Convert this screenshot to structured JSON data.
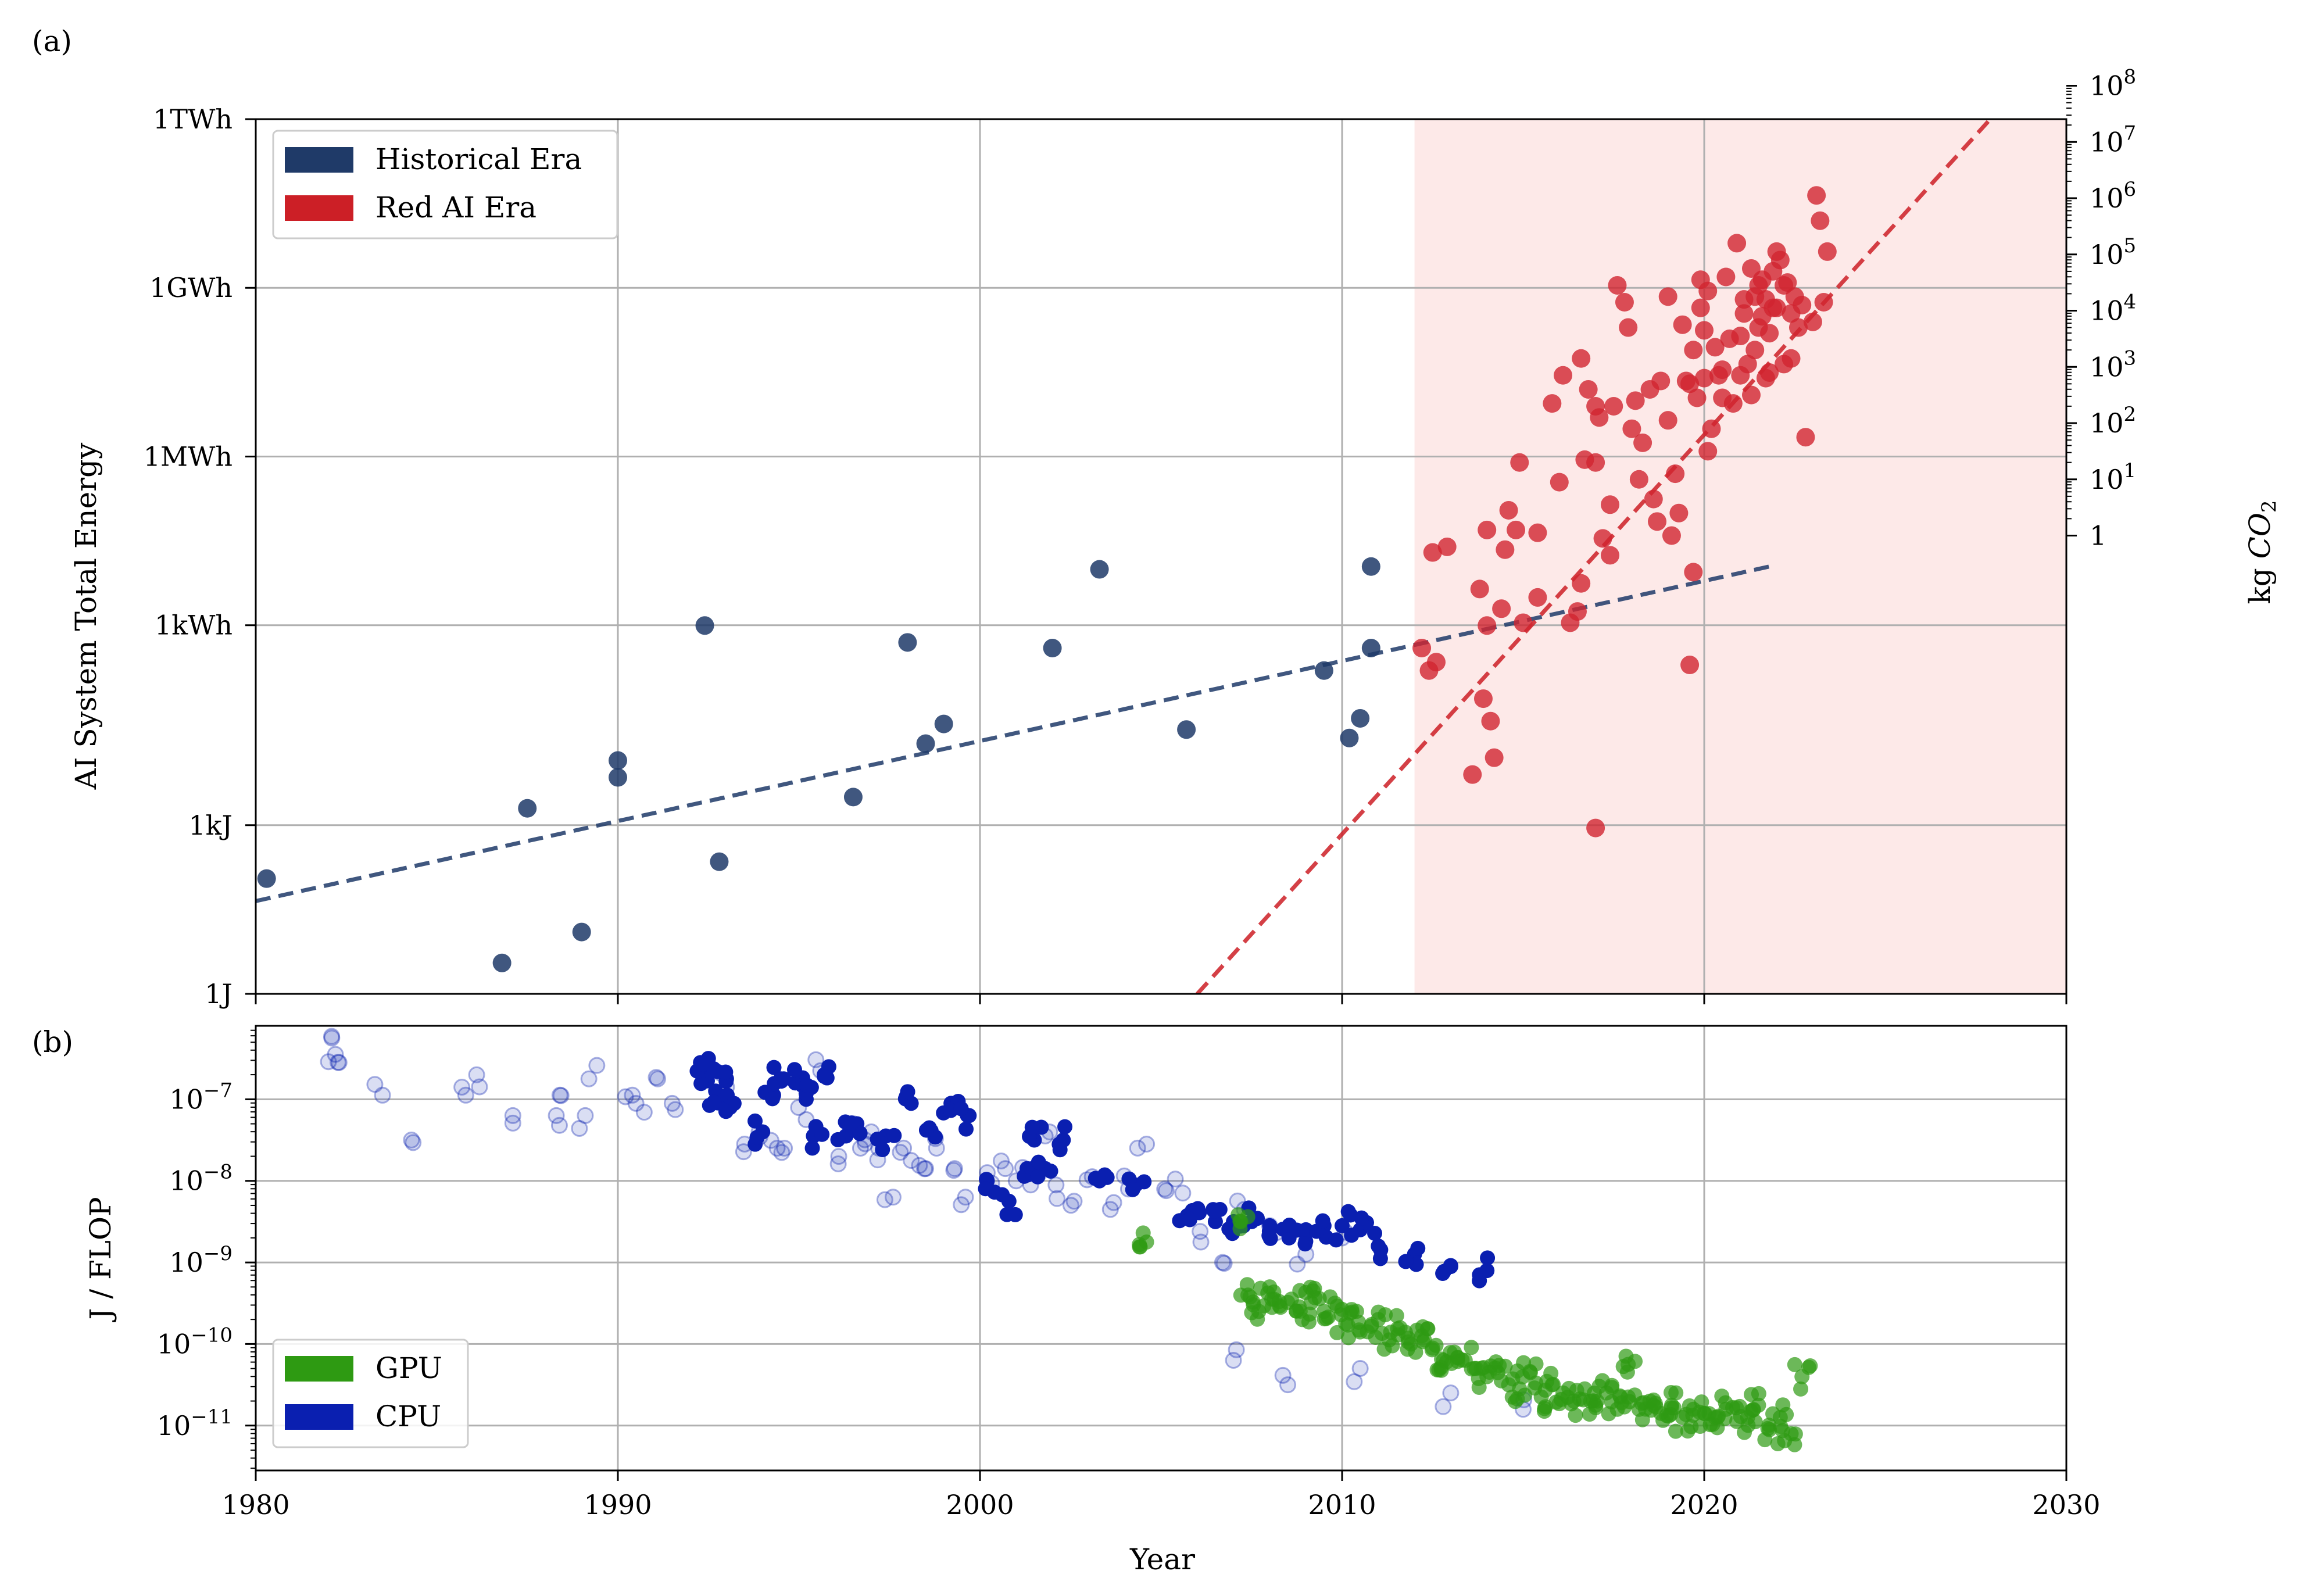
{
  "colors": {
    "historical": "#1f3a68",
    "red_ai": "#cc1f26",
    "red_ai_point": "#d1242f",
    "red_shade": "#fde9e8",
    "gpu": "#2e9a12",
    "cpu": "#0a1fb0",
    "grid": "#b0b0b0"
  },
  "chart_data": [
    {
      "panel_label": "(a)",
      "type": "scatter",
      "xlim": [
        1980,
        2030
      ],
      "ylim_log_joules": [
        0,
        12.556
      ],
      "ylabel": "AI System Total Energy",
      "y2label": "kg CO₂",
      "y_ticks": [
        {
          "label": "1J",
          "log_joules": 0
        },
        {
          "label": "1kJ",
          "log_joules": 3
        },
        {
          "label": "1kWh",
          "log_joules": 6.556
        },
        {
          "label": "1MWh",
          "log_joules": 9.556
        },
        {
          "label": "1GWh",
          "log_joules": 12.556
        },
        {
          "label": "1TWh",
          "log_joules": 15.556
        }
      ],
      "ylim": [
        0,
        15.556
      ],
      "y2_ticks": [
        {
          "base": "1",
          "exp": ""
        },
        {
          "base": "10",
          "exp": "1"
        },
        {
          "base": "10",
          "exp": "2"
        },
        {
          "base": "10",
          "exp": "3"
        },
        {
          "base": "10",
          "exp": "4"
        },
        {
          "base": "10",
          "exp": "5"
        },
        {
          "base": "10",
          "exp": "6"
        },
        {
          "base": "10",
          "exp": "7"
        },
        {
          "base": "10",
          "exp": "8"
        }
      ],
      "y2_log_offset": 8.15,
      "shaded_era_x": [
        2012,
        2030
      ],
      "legend": [
        {
          "label": "Historical Era",
          "color": "#1f3a68"
        },
        {
          "label": "Red AI Era",
          "color": "#cc1f26"
        }
      ],
      "series": [
        {
          "name": "Historical Era",
          "x": [
            1980.3,
            1986.8,
            1987.5,
            1989.0,
            1990.0,
            1990.0,
            1992.4,
            1992.8,
            1996.5,
            1998.0,
            1998.5,
            1999.0,
            2002.0,
            2003.3,
            2005.7,
            2009.5,
            2010.2,
            2010.5,
            2010.8,
            2010.8
          ],
          "y": [
            2.05,
            0.55,
            3.3,
            1.1,
            4.15,
            3.85,
            6.55,
            2.35,
            3.5,
            6.25,
            4.45,
            4.8,
            6.15,
            7.55,
            4.7,
            5.75,
            4.55,
            4.9,
            7.6,
            6.15
          ]
        },
        {
          "name": "Red AI Era",
          "x": [
            2012.2,
            2012.4,
            2012.5,
            2012.6,
            2012.9,
            2013.6,
            2013.8,
            2014.0,
            2014.0,
            2014.1,
            2014.2,
            2014.4,
            2014.5,
            2014.6,
            2014.8,
            2014.9,
            2015.0,
            2015.4,
            2015.8,
            2016.0,
            2016.1,
            2016.3,
            2016.5,
            2016.6,
            2016.7,
            2016.8,
            2017.0,
            2017.0,
            2017.0,
            2017.1,
            2017.2,
            2017.4,
            2017.5,
            2017.6,
            2017.8,
            2017.9,
            2018.0,
            2018.1,
            2018.2,
            2018.3,
            2018.5,
            2018.7,
            2018.8,
            2019.0,
            2019.0,
            2019.1,
            2019.2,
            2019.3,
            2019.4,
            2019.5,
            2019.6,
            2019.7,
            2019.7,
            2019.8,
            2019.9,
            2019.9,
            2020.0,
            2020.0,
            2020.1,
            2020.1,
            2020.2,
            2020.3,
            2020.4,
            2020.5,
            2020.5,
            2020.6,
            2020.7,
            2020.8,
            2020.9,
            2021.0,
            2021.0,
            2021.1,
            2021.1,
            2021.2,
            2021.3,
            2021.3,
            2021.4,
            2021.4,
            2021.5,
            2021.5,
            2021.6,
            2021.6,
            2021.7,
            2021.7,
            2021.8,
            2021.8,
            2021.9,
            2021.9,
            2022.0,
            2022.0,
            2022.1,
            2022.2,
            2022.2,
            2022.3,
            2022.4,
            2022.4,
            2022.5,
            2022.6,
            2022.7,
            2022.8,
            2023.0,
            2023.1,
            2023.2,
            2023.3,
            2023.4,
            2019.6,
            2013.9,
            2015.4,
            2016.6,
            2017.4,
            2018.6
          ],
          "y": [
            6.15,
            5.75,
            7.85,
            5.9,
            7.95,
            3.9,
            7.2,
            6.55,
            8.25,
            4.85,
            4.2,
            6.85,
            7.9,
            8.6,
            8.25,
            9.45,
            6.6,
            8.2,
            10.5,
            9.1,
            11.0,
            6.6,
            6.8,
            11.3,
            9.5,
            10.75,
            2.95,
            9.45,
            10.45,
            10.25,
            8.1,
            8.7,
            10.45,
            12.6,
            12.3,
            11.85,
            10.05,
            10.55,
            9.15,
            9.8,
            10.75,
            8.4,
            10.9,
            10.2,
            12.4,
            8.15,
            9.25,
            8.55,
            11.9,
            10.9,
            10.85,
            7.5,
            11.45,
            10.6,
            12.2,
            12.7,
            11.8,
            10.95,
            12.5,
            9.65,
            10.05,
            11.5,
            11.0,
            11.1,
            10.6,
            12.75,
            11.65,
            10.5,
            13.35,
            11.0,
            11.7,
            12.1,
            12.35,
            11.2,
            12.9,
            10.65,
            11.45,
            12.4,
            11.85,
            12.6,
            12.05,
            12.7,
            12.35,
            10.95,
            11.75,
            11.05,
            12.85,
            12.2,
            13.2,
            12.2,
            13.05,
            12.6,
            11.2,
            12.65,
            11.3,
            12.1,
            12.4,
            11.85,
            12.25,
            9.9,
            11.95,
            14.2,
            13.75,
            12.3,
            13.2,
            5.85,
            5.25,
            7.05,
            7.3,
            7.8,
            8.8
          ],
          "alpha": 0.8
        }
      ],
      "trend_lines": [
        {
          "name": "Historical trend",
          "x": [
            1980.0,
            2021.8
          ],
          "y": [
            1.65,
            7.6
          ],
          "style": "dashed"
        },
        {
          "name": "Red AI trend",
          "x": [
            2006.0,
            2027.9
          ],
          "y": [
            0.0,
            15.556
          ],
          "style": "dashed"
        }
      ],
      "y_label_color": "#1f3a68",
      "y2_label_color": "#cc1f26"
    },
    {
      "panel_label": "(b)",
      "type": "scatter",
      "xlim": [
        1980,
        2030
      ],
      "ylim": [
        -11.55,
        -6.1
      ],
      "xlabel": "Year",
      "ylabel": "J / FLOP",
      "x_ticks": [
        "1980",
        "1990",
        "2000",
        "2010",
        "2020",
        "2030"
      ],
      "y_ticks": [
        {
          "base": "10",
          "exp": "−7",
          "log": -7
        },
        {
          "base": "10",
          "exp": "−8",
          "log": -8
        },
        {
          "base": "10",
          "exp": "−9",
          "log": -9
        },
        {
          "base": "10",
          "exp": "−10",
          "log": -10
        },
        {
          "base": "10",
          "exp": "−11",
          "log": -11
        }
      ],
      "legend": [
        {
          "label": "GPU",
          "color": "#2e9a12"
        },
        {
          "label": "CPU",
          "color": "#0a1fb0"
        }
      ],
      "series": [
        {
          "name": "CPU (faint)",
          "x": [
            1982.1,
            1982.2,
            1982.3,
            1983.5,
            1984.3,
            1985.8,
            1986.1,
            1987.1,
            1988.3,
            1988.4,
            1989.1,
            1989.2,
            1990.4,
            1990.5,
            1991.1,
            1991.5,
            1993.0,
            1993.5,
            1993.9,
            1994.4,
            1994.6,
            1995.2,
            1995.6,
            1996.1,
            1996.5,
            1996.7,
            1997.0,
            1997.2,
            1997.6,
            1997.8,
            1998.1,
            1998.5,
            1998.8,
            1999.3,
            1999.6,
            2000.2,
            2000.7,
            2001.0,
            2001.4,
            2001.8,
            2002.1,
            2002.6,
            2003.1,
            2003.6,
            2004.1,
            2004.6,
            2005.1,
            2005.6,
            2006.1,
            2006.7,
            2007.3,
            2008.0,
            2009.0,
            2010.0,
            2007.0,
            2008.5,
            2010.5,
            2013.0,
            2015.0
          ],
          "y": [
            -6.25,
            -6.45,
            -6.55,
            -6.95,
            -7.5,
            -6.95,
            -6.7,
            -7.2,
            -7.2,
            -6.95,
            -7.2,
            -6.75,
            -6.95,
            -7.05,
            -6.75,
            -7.05,
            -6.85,
            -7.55,
            -7.4,
            -7.6,
            -7.6,
            -7.25,
            -6.65,
            -7.7,
            -7.3,
            -7.6,
            -7.4,
            -7.6,
            -8.2,
            -7.65,
            -7.75,
            -7.85,
            -7.6,
            -7.85,
            -8.2,
            -7.9,
            -7.85,
            -8.0,
            -8.05,
            -7.45,
            -8.05,
            -8.25,
            -7.95,
            -8.35,
            -8.1,
            -7.55,
            -8.1,
            -8.15,
            -8.75,
            -9.0,
            -8.35,
            -8.55,
            -8.9,
            -8.7,
            -10.2,
            -10.5,
            -10.3,
            -10.6,
            -10.8
          ],
          "alpha": 0.25
        },
        {
          "name": "CPU",
          "x": [
            1992.3,
            1992.5,
            1992.7,
            1993.0,
            1993.1,
            1994.0,
            1994.3,
            1994.5,
            1994.9,
            1995.2,
            1995.4,
            1995.7,
            1996.3,
            1996.6,
            1997.4,
            1998.1,
            1998.6,
            1999.2,
            1999.7,
            2000.2,
            2000.8,
            2001.3,
            2001.5,
            2001.8,
            2002.3,
            2003.3,
            2004.3,
            2005.7,
            2006.0,
            2006.5,
            2007.0,
            2007.5,
            2008.0,
            2008.5,
            2009.0,
            2009.5,
            2010.0,
            2010.5,
            2011.0,
            2012.0,
            2013.0,
            2014.0
          ],
          "y": [
            -6.65,
            -6.5,
            -6.9,
            -6.75,
            -7.1,
            -7.4,
            -6.95,
            -6.75,
            -6.8,
            -7.0,
            -7.45,
            -6.7,
            -7.45,
            -7.3,
            -7.45,
            -7.05,
            -7.35,
            -7.05,
            -7.2,
            -8.0,
            -8.25,
            -7.85,
            -7.5,
            -7.85,
            -7.5,
            -8.0,
            -8.05,
            -8.45,
            -8.35,
            -8.5,
            -8.5,
            -8.5,
            -8.55,
            -8.6,
            -8.6,
            -8.55,
            -8.55,
            -8.6,
            -8.8,
            -8.9,
            -9.05,
            -9.1
          ],
          "alpha": 1.0
        },
        {
          "name": "GPU",
          "x": [
            2004.6,
            2007.2,
            2007.4,
            2007.7,
            2008.0,
            2008.3,
            2008.6,
            2008.9,
            2009.2,
            2009.5,
            2009.8,
            2010.1,
            2010.4,
            2010.7,
            2011.0,
            2011.3,
            2011.6,
            2011.9,
            2012.2,
            2012.5,
            2012.8,
            2013.1,
            2013.4,
            2013.7,
            2014.0,
            2014.3,
            2014.6,
            2014.9,
            2015.2,
            2015.5,
            2015.8,
            2016.1,
            2016.4,
            2016.7,
            2017.0,
            2017.3,
            2017.6,
            2017.9,
            2018.2,
            2018.5,
            2018.8,
            2019.1,
            2019.4,
            2019.7,
            2020.0,
            2020.3,
            2020.6,
            2020.9,
            2021.2,
            2021.5,
            2021.8,
            2022.1,
            2022.4,
            2022.7,
            2017.9
          ],
          "y": [
            -8.75,
            -8.5,
            -9.4,
            -9.6,
            -9.3,
            -9.55,
            -9.45,
            -9.7,
            -9.35,
            -9.6,
            -9.5,
            -9.75,
            -9.6,
            -9.85,
            -9.7,
            -9.95,
            -9.8,
            -10.0,
            -9.9,
            -10.05,
            -10.2,
            -10.1,
            -10.2,
            -10.3,
            -10.4,
            -10.35,
            -10.5,
            -10.55,
            -10.35,
            -10.65,
            -10.5,
            -10.6,
            -10.7,
            -10.55,
            -10.75,
            -10.6,
            -10.8,
            -10.65,
            -10.8,
            -10.7,
            -10.85,
            -10.75,
            -10.9,
            -10.8,
            -10.85,
            -10.9,
            -10.8,
            -10.95,
            -10.9,
            -10.75,
            -11.05,
            -10.9,
            -11.1,
            -10.4,
            -10.25
          ],
          "alpha": 0.7
        }
      ]
    }
  ]
}
